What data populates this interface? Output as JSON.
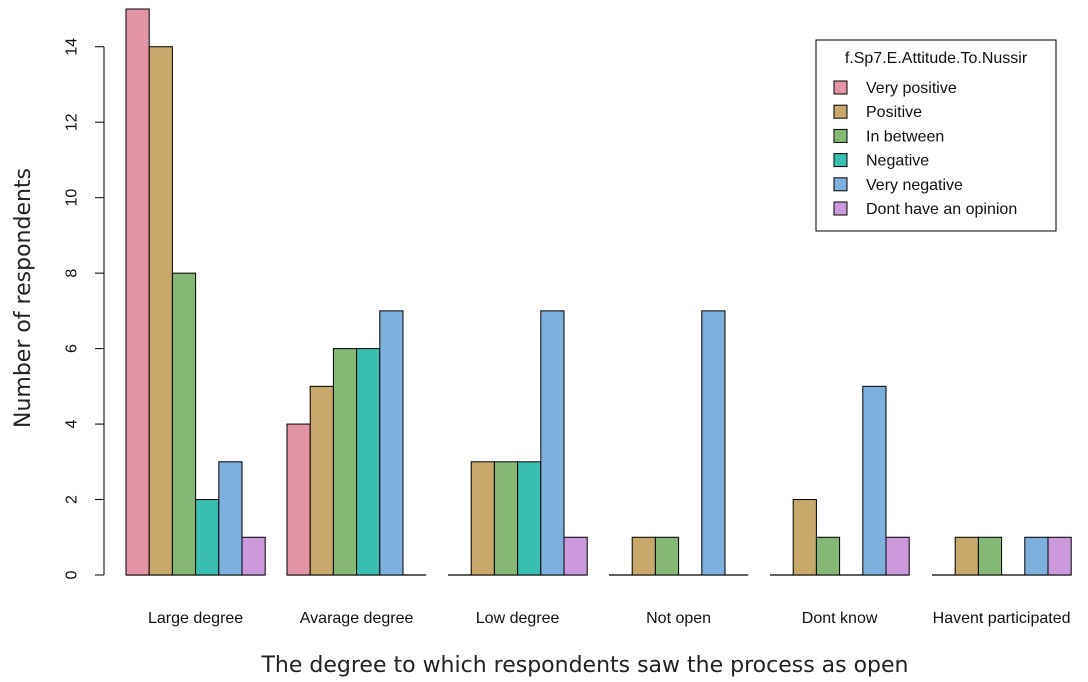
{
  "chart_data": {
    "type": "bar",
    "xlabel": "The degree to which respondents saw the process as open",
    "ylabel": "Number of respondents",
    "ylim": [
      0,
      15
    ],
    "yticks": [
      0,
      2,
      4,
      6,
      8,
      10,
      12,
      14
    ],
    "categories": [
      "Large degree",
      "Avarage degree",
      "Low degree",
      "Not open",
      "Dont know",
      "Havent participated"
    ],
    "legend": {
      "title": "f.Sp7.E.Attitude.To.Nussir",
      "placement": "top-right"
    },
    "series": [
      {
        "name": "Very positive",
        "color": "#E495A5",
        "values": [
          15,
          4,
          0,
          0,
          0,
          0
        ]
      },
      {
        "name": "Positive",
        "color": "#C9A96B",
        "values": [
          14,
          5,
          3,
          1,
          2,
          1
        ]
      },
      {
        "name": "In between",
        "color": "#86B875",
        "values": [
          8,
          6,
          3,
          1,
          1,
          1
        ]
      },
      {
        "name": "Negative",
        "color": "#39BEB1",
        "values": [
          2,
          6,
          3,
          0,
          0,
          0
        ]
      },
      {
        "name": "Very negative",
        "color": "#7DB0DD",
        "values": [
          3,
          7,
          7,
          7,
          5,
          1
        ]
      },
      {
        "name": "Dont have an opinion",
        "color": "#CC99DD",
        "values": [
          1,
          0,
          1,
          0,
          1,
          1
        ]
      }
    ]
  }
}
